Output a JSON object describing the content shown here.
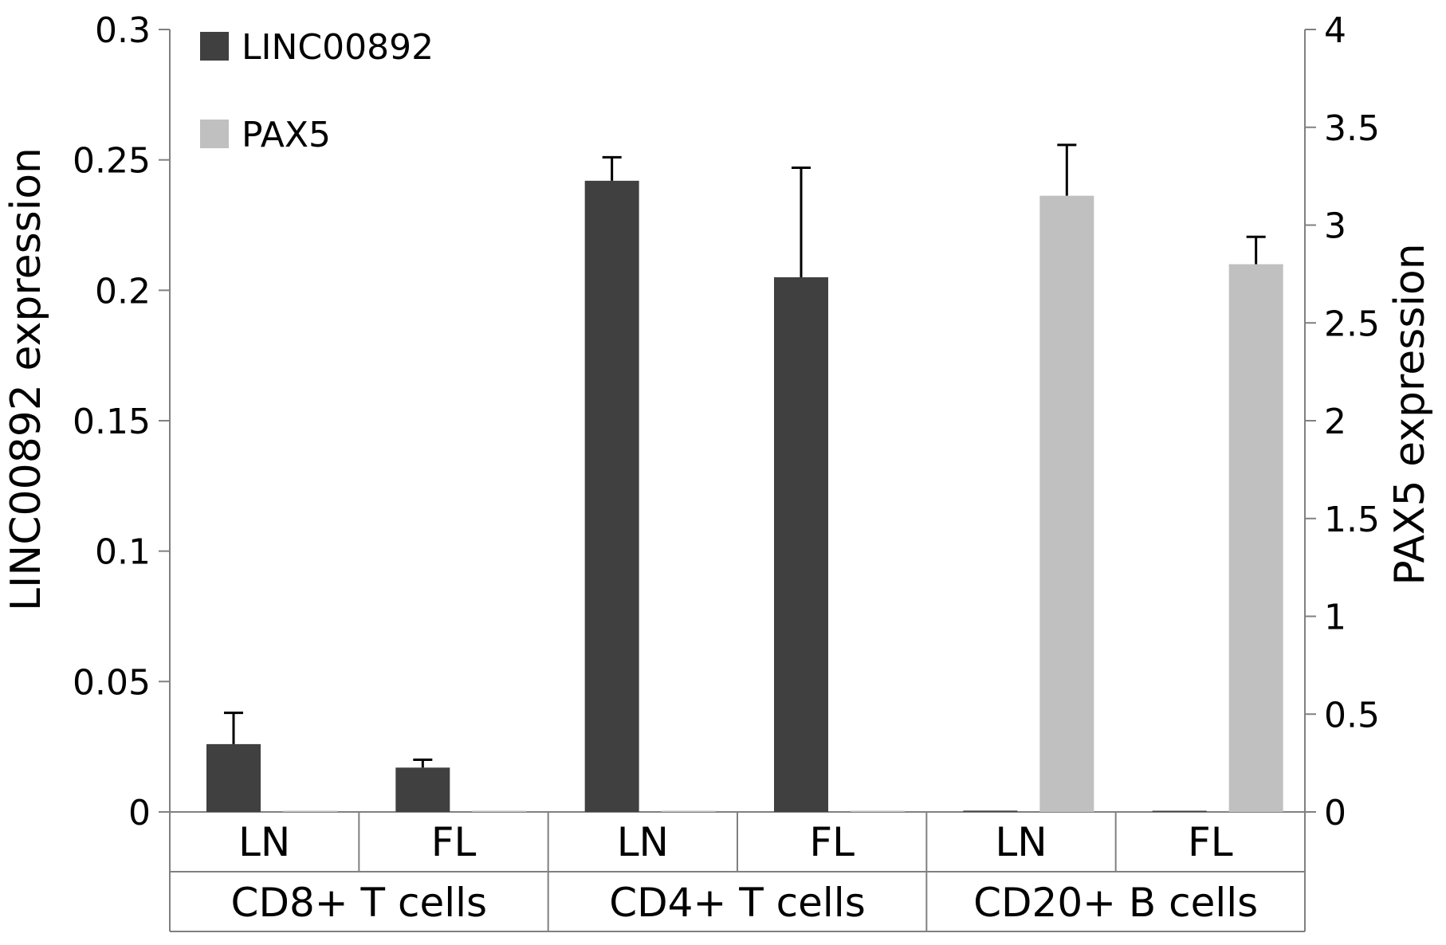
{
  "chart_data": {
    "type": "bar",
    "title": "",
    "categories": [
      "LN",
      "FL",
      "LN",
      "FL",
      "LN",
      "FL"
    ],
    "groups": [
      {
        "label": "CD8+ T cells",
        "categories": [
          "LN",
          "FL"
        ]
      },
      {
        "label": "CD4+ T cells",
        "categories": [
          "LN",
          "FL"
        ]
      },
      {
        "label": "CD20+ B cells",
        "categories": [
          "LN",
          "FL"
        ]
      }
    ],
    "series": [
      {
        "name": "LINC00892",
        "axis": "left",
        "color": "#404040",
        "values": [
          0.026,
          0.017,
          0.242,
          0.205,
          0.0005,
          0.0004
        ],
        "errors": [
          0.012,
          0.003,
          0.009,
          0.042,
          0,
          0
        ]
      },
      {
        "name": "PAX5",
        "axis": "right",
        "color": "#c0c0c0",
        "values": [
          0.005,
          0.004,
          0.005,
          0.005,
          3.15,
          2.8
        ],
        "errors": [
          0,
          0,
          0,
          0,
          0.26,
          0.14
        ]
      }
    ],
    "ylabel": "LINC00892 expression",
    "ylim": [
      0,
      0.3
    ],
    "yticks": [
      "0",
      "0.05",
      "0.1",
      "0.15",
      "0.2",
      "0.25",
      "0.3"
    ],
    "y2label": "PAX5 expression",
    "y2lim": [
      0,
      4
    ],
    "y2ticks": [
      "0",
      "0.5",
      "1",
      "1.5",
      "2",
      "2.5",
      "3",
      "3.5",
      "4"
    ],
    "grid": false,
    "legend": "top-left"
  }
}
